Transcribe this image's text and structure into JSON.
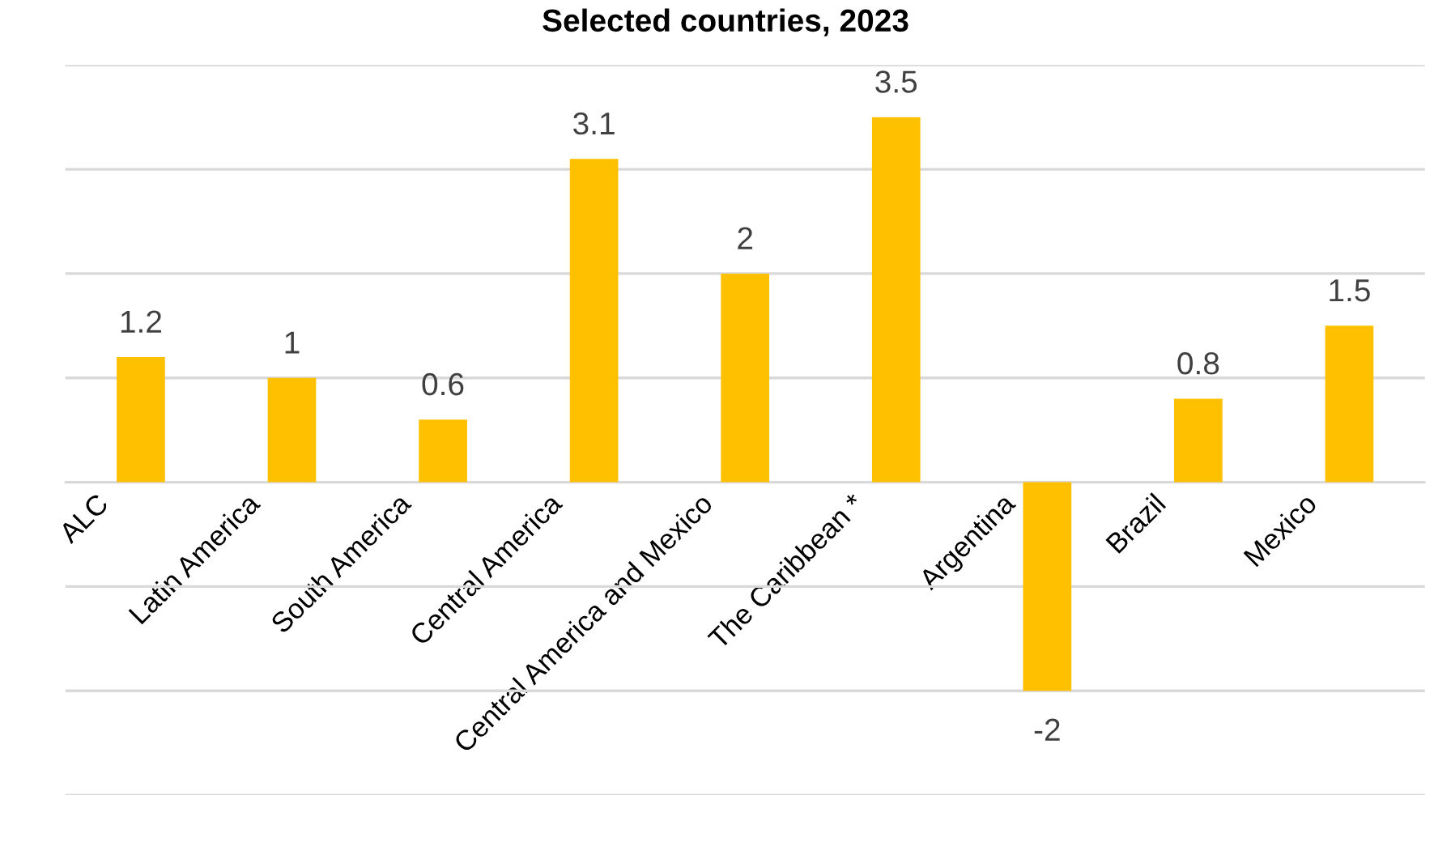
{
  "chart_data": {
    "type": "bar",
    "title": "Selected countries, 2023",
    "categories": [
      "ALC",
      "Latin America",
      "South America",
      "Central America",
      "Central America and Mexico",
      "The Caribbean *",
      "Argentina",
      "Brazil",
      "Mexico"
    ],
    "values": [
      1.2,
      1,
      0.6,
      3.1,
      2,
      3.5,
      -2,
      0.8,
      1.5
    ],
    "color": "#ffc000",
    "ylim": [
      -3,
      4
    ],
    "yticks": [
      {
        "value": -3,
        "label": null
      },
      {
        "value": -2,
        "label": null
      },
      {
        "value": -1,
        "label": null
      },
      {
        "value": 0,
        "label": null
      },
      {
        "value": 1,
        "label": null
      },
      {
        "value": 2,
        "label": null
      },
      {
        "value": 3,
        "label": null
      },
      {
        "value": 4,
        "label": null
      }
    ],
    "grid": "y",
    "data_labels": true,
    "tick_labels": "x"
  }
}
